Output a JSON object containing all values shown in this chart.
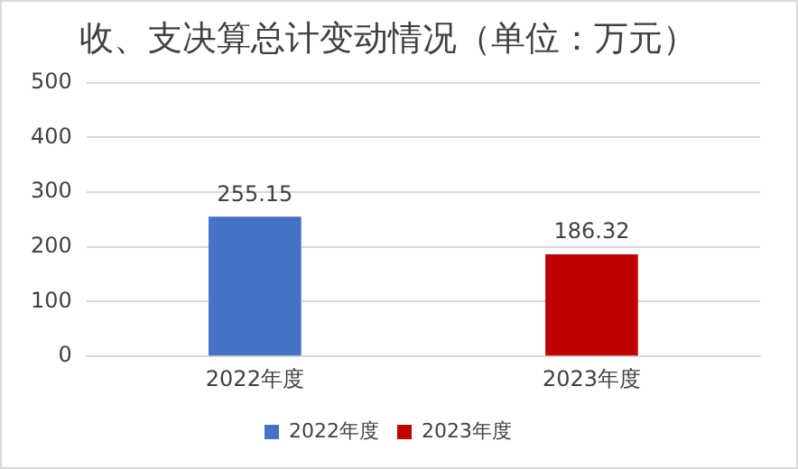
{
  "chart_data": {
    "type": "bar",
    "title": "收、支决算总计变动情况（单位：万元）",
    "categories": [
      "2022年度",
      "2023年度"
    ],
    "series": [
      {
        "name": "2022年度",
        "color": "#4472c4",
        "values": [
          255.15,
          null
        ]
      },
      {
        "name": "2023年度",
        "color": "#c00000",
        "values": [
          null,
          186.32
        ]
      }
    ],
    "ylim": [
      0,
      500
    ],
    "yticks": [
      0,
      100,
      200,
      300,
      400,
      500
    ],
    "grid": "y",
    "legend": "bottom",
    "data_labels": true
  }
}
